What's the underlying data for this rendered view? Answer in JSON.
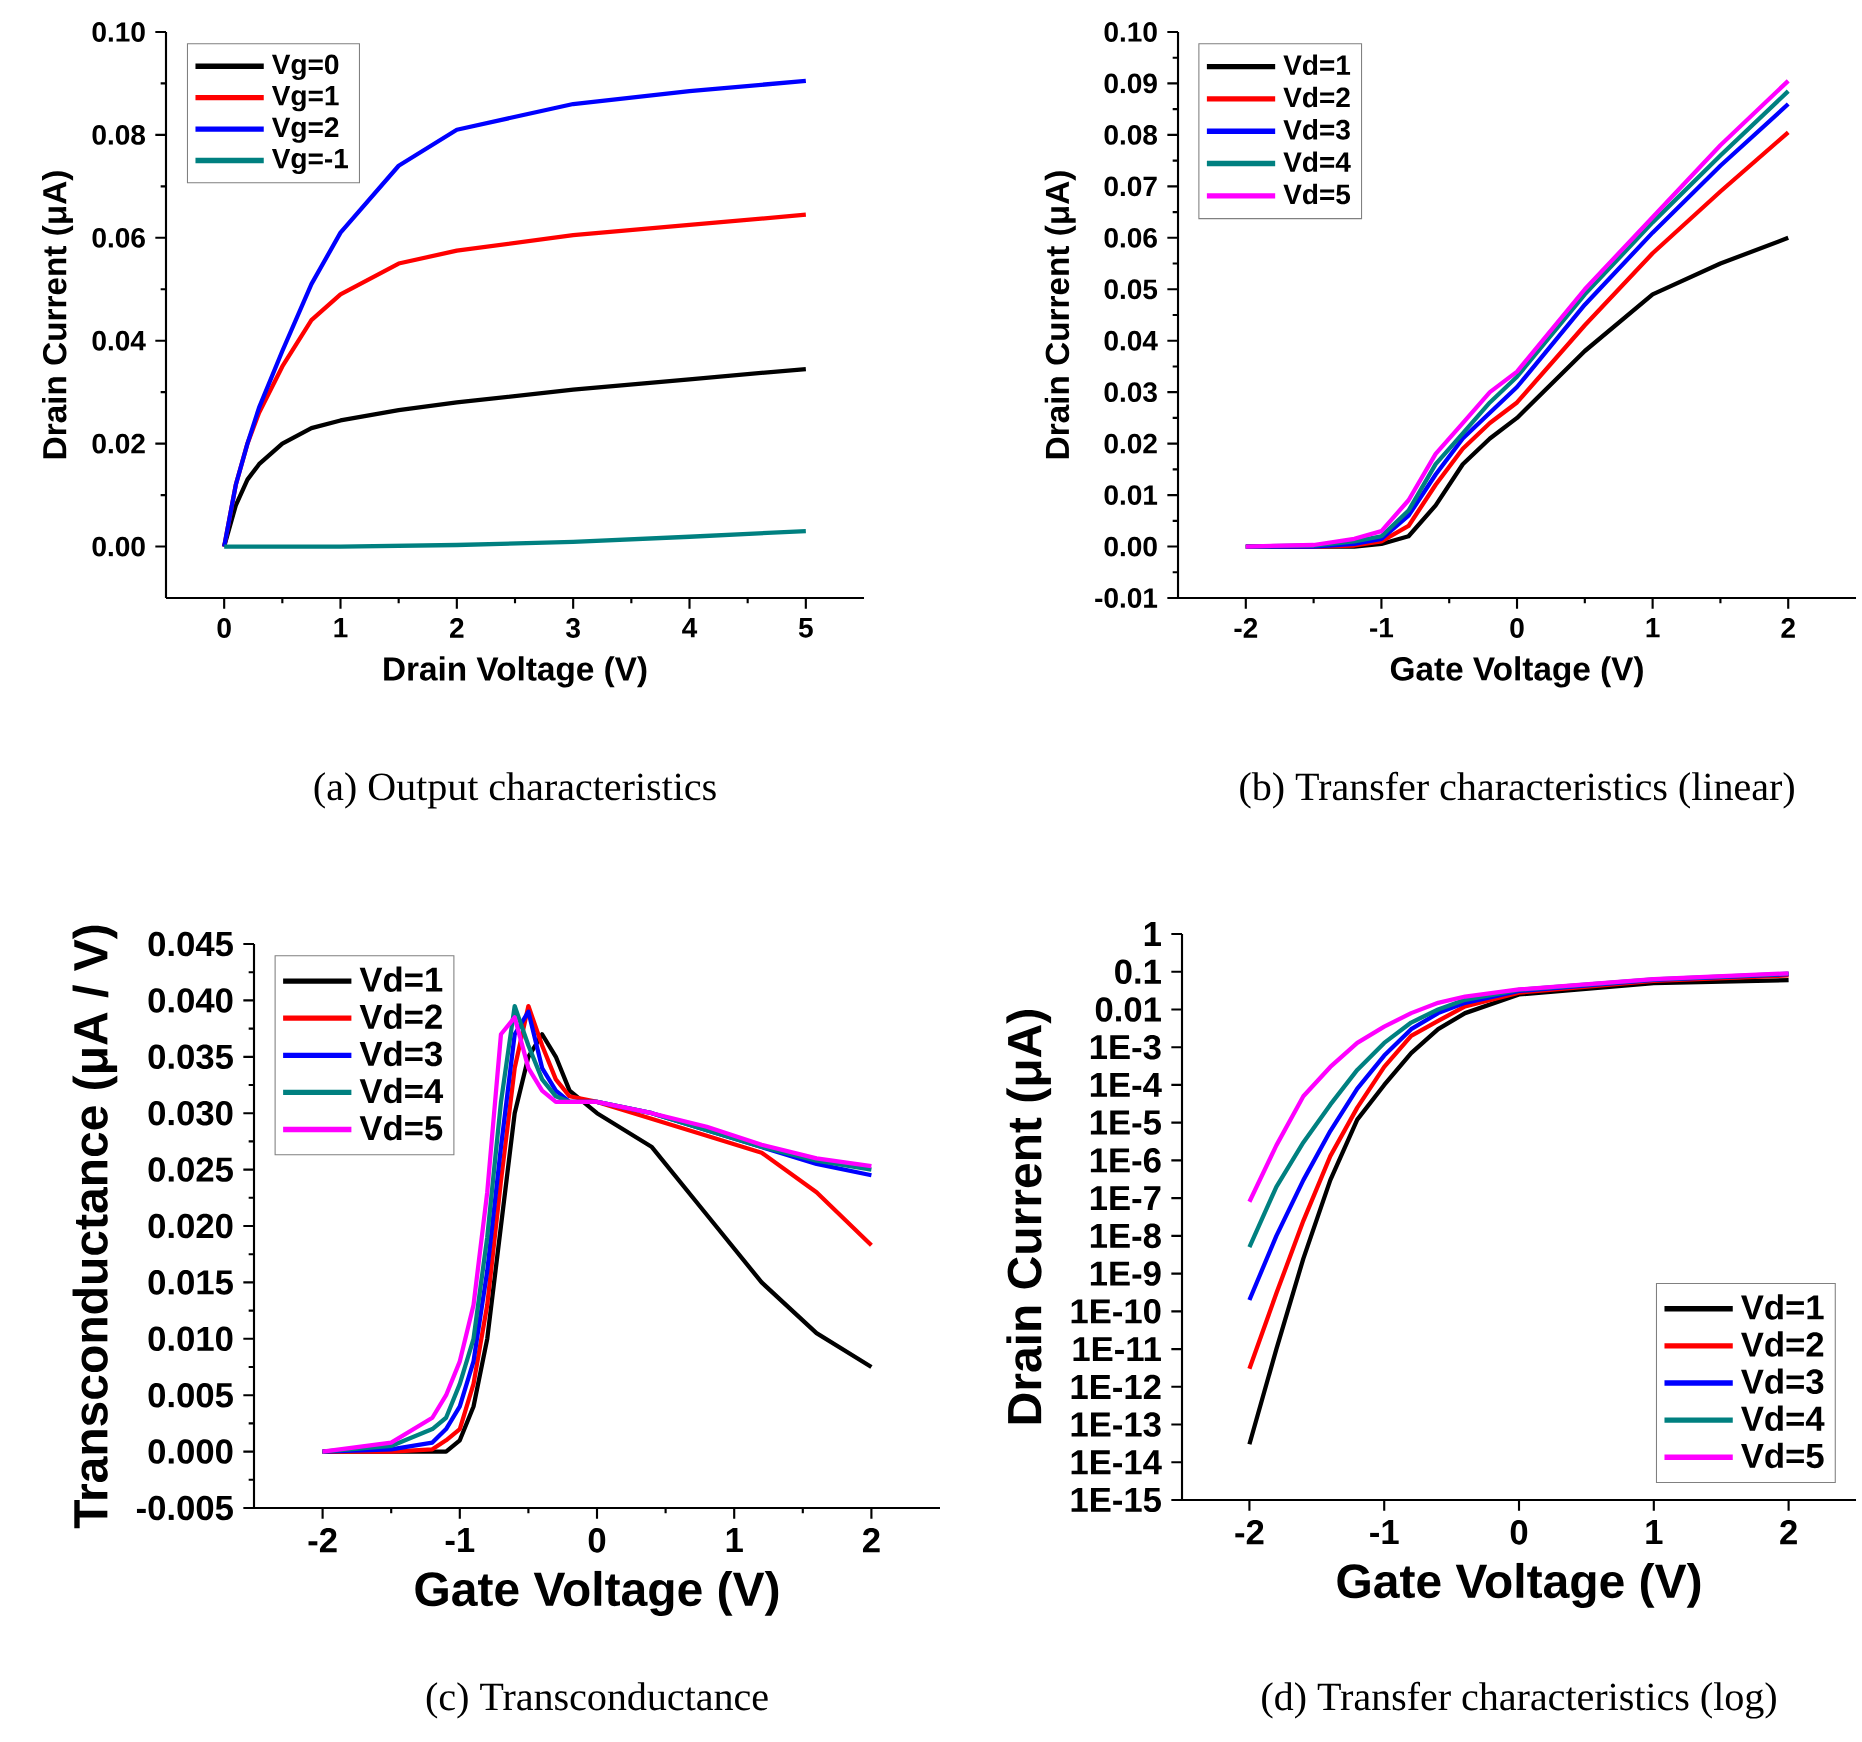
{
  "chart_data": [
    {
      "type": "line",
      "xlabel": "Drain Voltage (V)",
      "ylabel": "Drain Current (μA)",
      "annotations": [
        "(a) Output characteristics"
      ],
      "legend": "top left",
      "xlim": [
        -0.5,
        5.5
      ],
      "ylim": [
        -0.01,
        0.1
      ],
      "xticks": [
        0,
        1,
        2,
        3,
        4,
        5
      ],
      "yticks": [
        {
          "value": 0,
          "label": "0.00"
        },
        {
          "value": 0.02,
          "label": "0.02"
        },
        {
          "value": 0.04,
          "label": "0.04"
        },
        {
          "value": 0.06,
          "label": "0.06"
        },
        {
          "value": 0.08,
          "label": "0.08"
        },
        {
          "value": 0.1,
          "label": "0.10"
        }
      ],
      "series": [
        {
          "name": "Vg=0",
          "color": "#000000",
          "x": [
            0,
            0.1,
            0.2,
            0.3,
            0.5,
            0.75,
            1,
            1.5,
            2,
            3,
            4,
            5
          ],
          "values": [
            0,
            0.008,
            0.013,
            0.016,
            0.02,
            0.023,
            0.0245,
            0.0265,
            0.028,
            0.0305,
            0.0325,
            0.0345
          ]
        },
        {
          "name": "Vg=1",
          "color": "#ff0000",
          "x": [
            0,
            0.1,
            0.2,
            0.3,
            0.5,
            0.75,
            1,
            1.5,
            2,
            3,
            4,
            5
          ],
          "values": [
            0,
            0.012,
            0.02,
            0.026,
            0.035,
            0.044,
            0.049,
            0.055,
            0.0575,
            0.0605,
            0.0625,
            0.0645
          ]
        },
        {
          "name": "Vg=2",
          "color": "#0000ff",
          "x": [
            0,
            0.1,
            0.2,
            0.3,
            0.5,
            0.75,
            1,
            1.5,
            2,
            3,
            4,
            5
          ],
          "values": [
            0,
            0.012,
            0.02,
            0.027,
            0.038,
            0.051,
            0.061,
            0.074,
            0.081,
            0.086,
            0.0885,
            0.0905
          ]
        },
        {
          "name": "Vg=-1",
          "color": "#008080",
          "x": [
            0,
            1,
            2,
            3,
            4,
            5
          ],
          "values": [
            0,
            0,
            0.0003,
            0.0009,
            0.0019,
            0.003
          ]
        }
      ]
    },
    {
      "type": "line",
      "xlabel": "Gate Voltage (V)",
      "ylabel": "Drain Current (μA)",
      "annotations": [
        "(b) Transfer characteristics (linear)"
      ],
      "legend": "top left",
      "xlim": [
        -2.5,
        2.5
      ],
      "ylim": [
        -0.01,
        0.1
      ],
      "xticks": [
        -2,
        -1,
        0,
        1,
        2
      ],
      "yticks": [
        {
          "value": -0.01,
          "label": "-0.01"
        },
        {
          "value": 0,
          "label": "0.00"
        },
        {
          "value": 0.01,
          "label": "0.01"
        },
        {
          "value": 0.02,
          "label": "0.02"
        },
        {
          "value": 0.03,
          "label": "0.03"
        },
        {
          "value": 0.04,
          "label": "0.04"
        },
        {
          "value": 0.05,
          "label": "0.05"
        },
        {
          "value": 0.06,
          "label": "0.06"
        },
        {
          "value": 0.07,
          "label": "0.07"
        },
        {
          "value": 0.08,
          "label": "0.08"
        },
        {
          "value": 0.09,
          "label": "0.09"
        },
        {
          "value": 0.1,
          "label": "0.10"
        }
      ],
      "series": [
        {
          "name": "Vd=1",
          "color": "#000000",
          "x": [
            -2,
            -1.5,
            -1.2,
            -1,
            -0.8,
            -0.6,
            -0.4,
            -0.2,
            0,
            0.5,
            1,
            1.5,
            2
          ],
          "values": [
            0,
            0,
            0,
            0.0005,
            0.002,
            0.008,
            0.016,
            0.021,
            0.025,
            0.038,
            0.049,
            0.055,
            0.06
          ]
        },
        {
          "name": "Vd=2",
          "color": "#ff0000",
          "x": [
            -2,
            -1.5,
            -1.2,
            -1,
            -0.8,
            -0.6,
            -0.4,
            -0.2,
            0,
            0.5,
            1,
            1.5,
            2
          ],
          "values": [
            0,
            0,
            0.0002,
            0.001,
            0.004,
            0.012,
            0.019,
            0.024,
            0.028,
            0.043,
            0.057,
            0.069,
            0.0805
          ]
        },
        {
          "name": "Vd=3",
          "color": "#0000ff",
          "x": [
            -2,
            -1.5,
            -1.2,
            -1,
            -0.8,
            -0.6,
            -0.4,
            -0.2,
            0,
            0.5,
            1,
            1.5,
            2
          ],
          "values": [
            0,
            0,
            0.0005,
            0.0015,
            0.006,
            0.014,
            0.021,
            0.026,
            0.031,
            0.047,
            0.061,
            0.074,
            0.086
          ]
        },
        {
          "name": "Vd=4",
          "color": "#008080",
          "x": [
            -2,
            -1.5,
            -1.2,
            -1,
            -0.8,
            -0.6,
            -0.4,
            -0.2,
            0,
            0.5,
            1,
            1.5,
            2
          ],
          "values": [
            0,
            0.0002,
            0.001,
            0.002,
            0.007,
            0.016,
            0.022,
            0.028,
            0.033,
            0.049,
            0.063,
            0.076,
            0.0885
          ]
        },
        {
          "name": "Vd=5",
          "color": "#ff00ff",
          "x": [
            -2,
            -1.5,
            -1.2,
            -1,
            -0.8,
            -0.6,
            -0.4,
            -0.2,
            0,
            0.5,
            1,
            1.5,
            2
          ],
          "values": [
            0,
            0.0003,
            0.0015,
            0.003,
            0.009,
            0.018,
            0.024,
            0.03,
            0.034,
            0.05,
            0.064,
            0.078,
            0.0905
          ]
        }
      ]
    },
    {
      "type": "line",
      "xlabel": "Gate Voltage (V)",
      "ylabel": "Transconductance (μA / V)",
      "annotations": [
        "(c) Transconductance"
      ],
      "legend": "top left",
      "xlim": [
        -2.5,
        2.5
      ],
      "ylim": [
        -0.005,
        0.045
      ],
      "xticks": [
        -2,
        -1,
        0,
        1,
        2
      ],
      "yticks": [
        {
          "value": -0.005,
          "label": "-0.005"
        },
        {
          "value": 0,
          "label": "0.000"
        },
        {
          "value": 0.005,
          "label": "0.005"
        },
        {
          "value": 0.01,
          "label": "0.010"
        },
        {
          "value": 0.015,
          "label": "0.015"
        },
        {
          "value": 0.02,
          "label": "0.020"
        },
        {
          "value": 0.025,
          "label": "0.025"
        },
        {
          "value": 0.03,
          "label": "0.030"
        },
        {
          "value": 0.035,
          "label": "0.035"
        },
        {
          "value": 0.04,
          "label": "0.040"
        },
        {
          "value": 0.045,
          "label": "0.045"
        }
      ],
      "series": [
        {
          "name": "Vd=1",
          "color": "#000000",
          "x": [
            -2,
            -1.5,
            -1.2,
            -1.1,
            -1,
            -0.9,
            -0.8,
            -0.7,
            -0.6,
            -0.5,
            -0.4,
            -0.3,
            -0.2,
            0,
            0.4,
            0.8,
            1.2,
            1.6,
            2
          ],
          "values": [
            0,
            0,
            0,
            0,
            0.001,
            0.004,
            0.01,
            0.02,
            0.03,
            0.035,
            0.037,
            0.035,
            0.032,
            0.03,
            0.027,
            0.021,
            0.015,
            0.0105,
            0.0075
          ]
        },
        {
          "name": "Vd=2",
          "color": "#ff0000",
          "x": [
            -2,
            -1.5,
            -1.2,
            -1.1,
            -1,
            -0.9,
            -0.8,
            -0.7,
            -0.6,
            -0.5,
            -0.4,
            -0.3,
            -0.2,
            0,
            0.4,
            0.8,
            1.2,
            1.6,
            2
          ],
          "values": [
            0,
            0,
            0.0002,
            0.001,
            0.002,
            0.006,
            0.013,
            0.024,
            0.034,
            0.0395,
            0.036,
            0.033,
            0.0315,
            0.031,
            0.0295,
            0.028,
            0.0265,
            0.023,
            0.0183
          ]
        },
        {
          "name": "Vd=3",
          "color": "#0000ff",
          "x": [
            -2,
            -1.5,
            -1.2,
            -1.1,
            -1,
            -0.9,
            -0.8,
            -0.7,
            -0.6,
            -0.5,
            -0.4,
            -0.3,
            -0.2,
            0,
            0.4,
            0.8,
            1.2,
            1.6,
            2
          ],
          "values": [
            0,
            0.0002,
            0.0008,
            0.002,
            0.004,
            0.008,
            0.016,
            0.027,
            0.037,
            0.039,
            0.034,
            0.032,
            0.031,
            0.031,
            0.03,
            0.0285,
            0.027,
            0.0255,
            0.0245
          ]
        },
        {
          "name": "Vd=4",
          "color": "#008080",
          "x": [
            -2,
            -1.5,
            -1.2,
            -1.1,
            -1,
            -0.9,
            -0.8,
            -0.7,
            -0.6,
            -0.5,
            -0.4,
            -0.3,
            -0.2,
            0,
            0.4,
            0.8,
            1.2,
            1.6,
            2
          ],
          "values": [
            0,
            0.0005,
            0.002,
            0.003,
            0.006,
            0.01,
            0.019,
            0.031,
            0.0395,
            0.036,
            0.033,
            0.0315,
            0.031,
            0.031,
            0.03,
            0.0285,
            0.027,
            0.0258,
            0.025
          ]
        },
        {
          "name": "Vd=5",
          "color": "#ff00ff",
          "x": [
            -2,
            -1.5,
            -1.2,
            -1.1,
            -1,
            -0.9,
            -0.8,
            -0.7,
            -0.6,
            -0.5,
            -0.4,
            -0.3,
            -0.2,
            0,
            0.4,
            0.8,
            1.2,
            1.6,
            2
          ],
          "values": [
            0,
            0.0008,
            0.003,
            0.005,
            0.008,
            0.013,
            0.023,
            0.037,
            0.0385,
            0.034,
            0.032,
            0.031,
            0.031,
            0.031,
            0.03,
            0.0288,
            0.0272,
            0.026,
            0.0253
          ]
        }
      ]
    },
    {
      "type": "line",
      "xlabel": "Gate Voltage (V)",
      "ylabel": "Drain Current (μA)",
      "annotations": [
        "(d) Transfer characteristics (log)"
      ],
      "legend": "bottom right",
      "log": "y",
      "xlim": [
        -2.5,
        2.5
      ],
      "ylim": [
        1e-15,
        1
      ],
      "xticks": [
        -2,
        -1,
        0,
        1,
        2
      ],
      "yticks": [
        {
          "value": 1e-15,
          "label": "1E-15"
        },
        {
          "value": 1e-14,
          "label": "1E-14"
        },
        {
          "value": 1e-13,
          "label": "1E-13"
        },
        {
          "value": 1e-12,
          "label": "1E-12"
        },
        {
          "value": 1e-11,
          "label": "1E-11"
        },
        {
          "value": 1e-10,
          "label": "1E-10"
        },
        {
          "value": 1e-09,
          "label": "1E-9"
        },
        {
          "value": 1e-08,
          "label": "1E-8"
        },
        {
          "value": 1e-07,
          "label": "1E-7"
        },
        {
          "value": 1e-06,
          "label": "1E-6"
        },
        {
          "value": 1e-05,
          "label": "1E-5"
        },
        {
          "value": 0.0001,
          "label": "1E-4"
        },
        {
          "value": 0.001,
          "label": "1E-3"
        },
        {
          "value": 0.01,
          "label": "0.01"
        },
        {
          "value": 0.1,
          "label": "0.1"
        },
        {
          "value": 1,
          "label": "1"
        }
      ],
      "series": [
        {
          "name": "Vd=1",
          "color": "#000000",
          "x": [
            -2,
            -1.8,
            -1.6,
            -1.4,
            -1.2,
            -1,
            -0.8,
            -0.6,
            -0.4,
            0,
            1,
            2
          ],
          "values": [
            3e-14,
            1e-11,
            2.5e-09,
            3e-07,
            1.2e-05,
            0.0001,
            0.0007,
            0.003,
            0.008,
            0.025,
            0.05,
            0.06
          ]
        },
        {
          "name": "Vd=2",
          "color": "#ff0000",
          "x": [
            -2,
            -1.8,
            -1.6,
            -1.4,
            -1.2,
            -1,
            -0.8,
            -0.6,
            -0.4,
            0,
            1,
            2
          ],
          "values": [
            3e-12,
            3e-10,
            2.5e-08,
            1.3e-06,
            2.5e-05,
            0.0003,
            0.002,
            0.005,
            0.012,
            0.028,
            0.057,
            0.08
          ]
        },
        {
          "name": "Vd=3",
          "color": "#0000ff",
          "x": [
            -2,
            -1.8,
            -1.6,
            -1.4,
            -1.2,
            -1,
            -0.8,
            -0.6,
            -0.4,
            0,
            1,
            2
          ],
          "values": [
            2e-10,
            1e-08,
            3e-07,
            6e-06,
            8e-05,
            0.0006,
            0.003,
            0.008,
            0.015,
            0.031,
            0.061,
            0.086
          ]
        },
        {
          "name": "Vd=4",
          "color": "#008080",
          "x": [
            -2,
            -1.8,
            -1.6,
            -1.4,
            -1.2,
            -1,
            -0.8,
            -0.6,
            -0.4,
            0,
            1,
            2
          ],
          "values": [
            5e-09,
            2e-07,
            3e-06,
            3e-05,
            0.00025,
            0.0013,
            0.0045,
            0.01,
            0.018,
            0.033,
            0.063,
            0.0885
          ]
        },
        {
          "name": "Vd=5",
          "color": "#ff00ff",
          "x": [
            -2,
            -1.8,
            -1.6,
            -1.4,
            -1.2,
            -1,
            -0.8,
            -0.6,
            -0.4,
            0,
            1,
            2
          ],
          "values": [
            8e-08,
            2.5e-06,
            5e-05,
            0.0003,
            0.0013,
            0.0035,
            0.008,
            0.015,
            0.022,
            0.034,
            0.064,
            0.0905
          ]
        }
      ]
    }
  ]
}
